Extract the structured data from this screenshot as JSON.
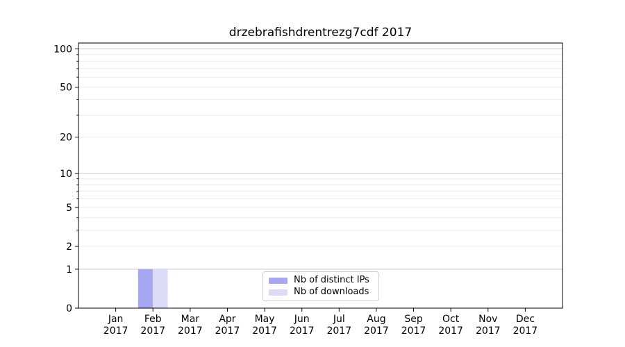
{
  "chart_data": {
    "type": "bar",
    "title": "drzebrafishdrentrezg7cdf 2017",
    "xlabel": "",
    "ylabel": "",
    "yscale": "log1p",
    "ylim": [
      0,
      111
    ],
    "grid": "on",
    "legend_position": "lower center",
    "categories": [
      {
        "month": "Jan",
        "year": "2017"
      },
      {
        "month": "Feb",
        "year": "2017"
      },
      {
        "month": "Mar",
        "year": "2017"
      },
      {
        "month": "Apr",
        "year": "2017"
      },
      {
        "month": "May",
        "year": "2017"
      },
      {
        "month": "Jun",
        "year": "2017"
      },
      {
        "month": "Jul",
        "year": "2017"
      },
      {
        "month": "Aug",
        "year": "2017"
      },
      {
        "month": "Sep",
        "year": "2017"
      },
      {
        "month": "Oct",
        "year": "2017"
      },
      {
        "month": "Nov",
        "year": "2017"
      },
      {
        "month": "Dec",
        "year": "2017"
      }
    ],
    "series": [
      {
        "name": "Nb of distinct IPs",
        "color": "#a8a8f2",
        "values": [
          0,
          1,
          0,
          0,
          0,
          0,
          0,
          0,
          0,
          0,
          0,
          0
        ]
      },
      {
        "name": "Nb of downloads",
        "color": "#dcdcf9",
        "values": [
          0,
          1,
          0,
          0,
          0,
          0,
          0,
          0,
          0,
          0,
          0,
          0
        ]
      }
    ],
    "y_tick_labels": [
      0,
      1,
      2,
      5,
      10,
      20,
      50,
      100
    ],
    "y_major_gridlines": [
      1,
      10,
      100
    ],
    "y_minor_gridlines": [
      2,
      3,
      4,
      5,
      6,
      7,
      8,
      9,
      20,
      30,
      40,
      50,
      60,
      70,
      80,
      90
    ],
    "y_minor_ticks": [
      3,
      4,
      6,
      7,
      8,
      9,
      30,
      40,
      60,
      70,
      80,
      90
    ]
  },
  "style": {
    "bar_distinct_ips": "#a8a8f2",
    "bar_downloads": "#dcdcf9",
    "grid_major": "#c9c9c9",
    "grid_minor": "#ebebeb",
    "spine": "#000000",
    "text": "#000000",
    "legend_border": "#cccccc",
    "background": "#ffffff"
  }
}
